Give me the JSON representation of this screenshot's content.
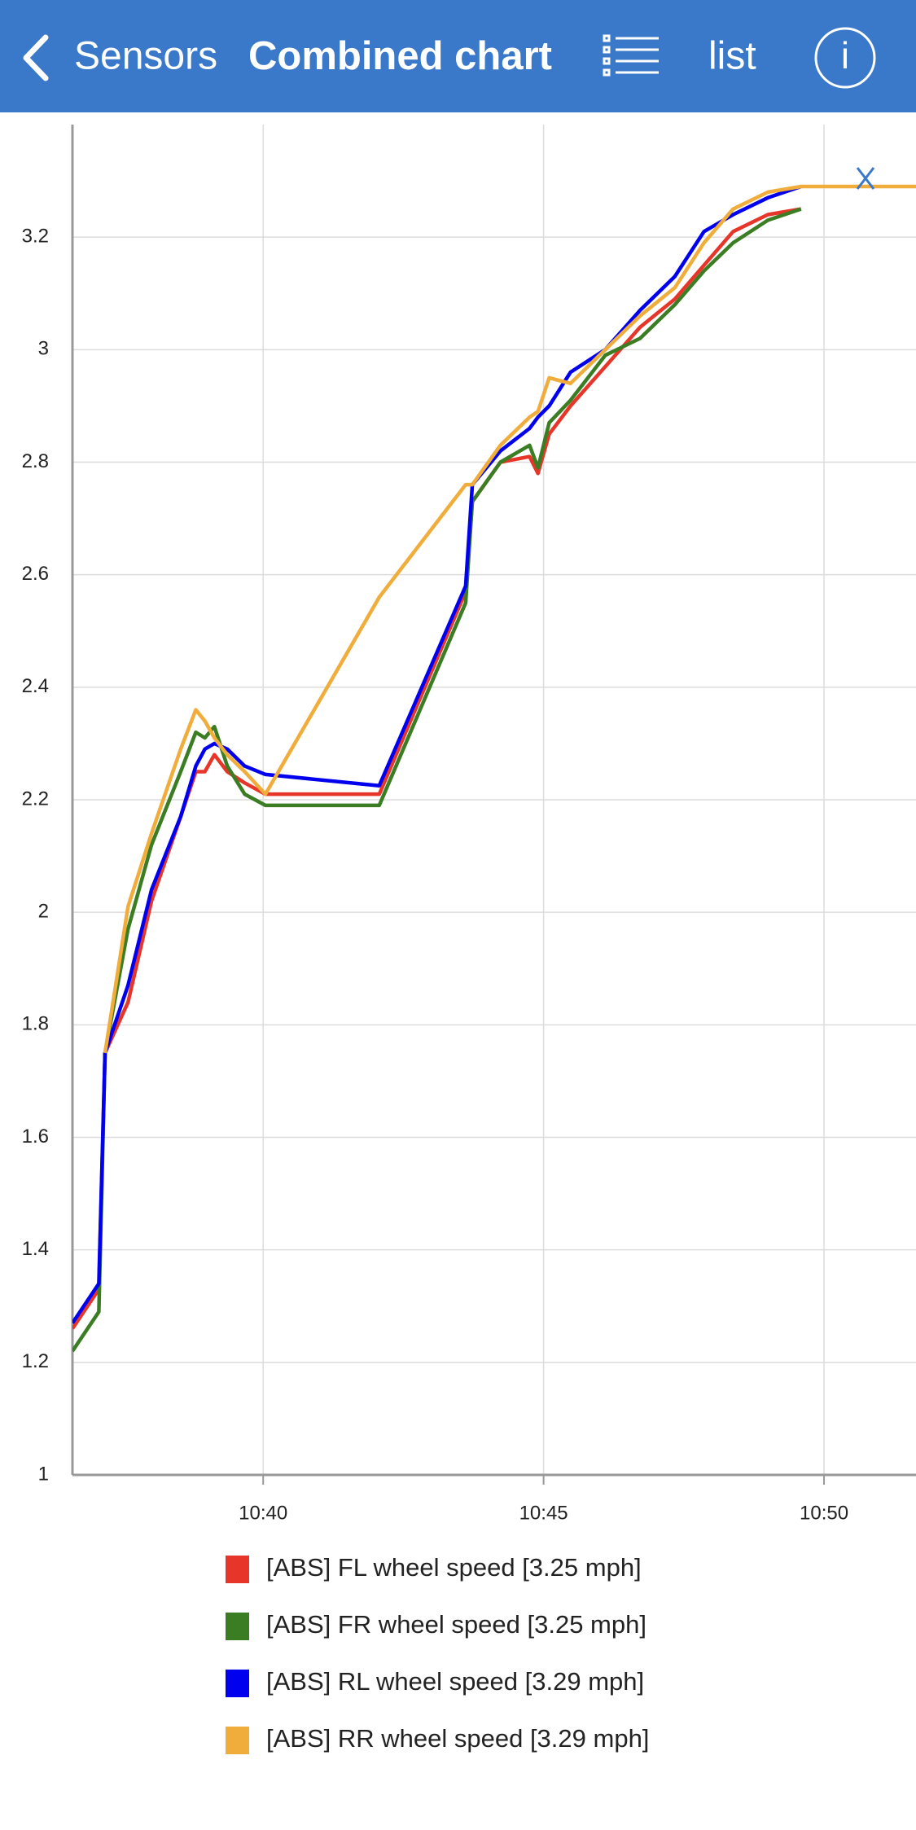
{
  "header": {
    "back_label": "Sensors",
    "title": "Combined chart",
    "list_label": "list",
    "info_label": "i"
  },
  "chart_data": {
    "type": "line",
    "x": [
      636.6,
      637.07,
      637.18,
      637.59,
      638.01,
      638.53,
      638.8,
      638.96,
      639.13,
      639.36,
      639.67,
      640.04,
      642.07,
      643.61,
      643.73,
      644.23,
      644.75,
      644.9,
      645.1,
      645.48,
      646.1,
      646.72,
      647.34,
      647.86,
      648.38,
      649.0,
      649.59,
      651.64
    ],
    "series": [
      {
        "name": "[ABS] FL wheel speed [3.25 mph]",
        "color": "#e8352a",
        "values": [
          1.26,
          1.33,
          1.75,
          1.84,
          2.02,
          2.17,
          2.25,
          2.25,
          2.28,
          2.25,
          2.23,
          2.21,
          2.21,
          2.57,
          2.73,
          2.8,
          2.81,
          2.78,
          2.85,
          2.9,
          2.97,
          3.04,
          3.09,
          3.15,
          3.21,
          3.24,
          3.25,
          null
        ]
      },
      {
        "name": "[ABS] FR wheel speed [3.25 mph]",
        "color": "#3a7d22",
        "values": [
          1.22,
          1.29,
          1.75,
          1.97,
          2.12,
          2.25,
          2.32,
          2.31,
          2.33,
          2.26,
          2.21,
          2.19,
          2.19,
          2.55,
          2.73,
          2.8,
          2.83,
          2.79,
          2.87,
          2.91,
          2.99,
          3.02,
          3.08,
          3.14,
          3.19,
          3.23,
          3.25,
          null
        ]
      },
      {
        "name": "[ABS] RL wheel speed [3.29 mph]",
        "color": "#0000ee",
        "values": [
          1.27,
          1.34,
          1.75,
          1.87,
          2.04,
          2.17,
          2.26,
          2.29,
          2.3,
          2.29,
          2.26,
          2.245,
          2.225,
          2.58,
          2.76,
          2.82,
          2.86,
          2.88,
          2.9,
          2.96,
          3.0,
          3.07,
          3.13,
          3.21,
          3.24,
          3.27,
          3.29,
          null
        ]
      },
      {
        "name": "[ABS] RR wheel speed [3.29 mph]",
        "color": "#f0ad3c",
        "values": [
          null,
          null,
          1.75,
          2.01,
          2.14,
          2.29,
          2.36,
          2.34,
          2.31,
          2.28,
          2.25,
          2.21,
          2.56,
          2.76,
          2.76,
          2.83,
          2.88,
          2.89,
          2.95,
          2.94,
          3.0,
          3.06,
          3.11,
          3.19,
          3.25,
          3.28,
          3.29,
          3.29
        ]
      }
    ],
    "xlim": [
      636.6,
      651.64
    ],
    "xticks": [
      {
        "value": 640,
        "label": "10:40"
      },
      {
        "value": 645,
        "label": "10:45"
      },
      {
        "value": 650,
        "label": "10:50"
      }
    ],
    "ylim": [
      1,
      3.4
    ],
    "yticks": [
      1,
      1.2,
      1.4,
      1.6,
      1.8,
      2,
      2.2,
      2.4,
      2.6,
      2.8,
      3,
      3.2
    ],
    "grid": true
  }
}
